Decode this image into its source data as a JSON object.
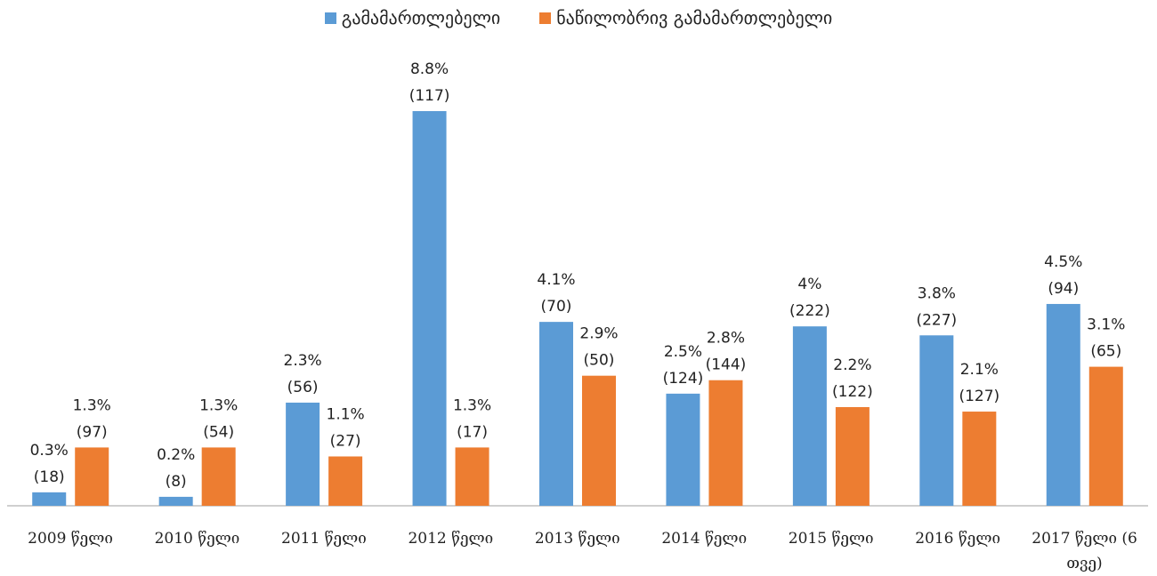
{
  "chart_data": {
    "type": "bar",
    "categories": [
      "2009 წელი",
      "2010 წელი",
      "2011 წელი",
      "2012 წელი",
      "2013 წელი",
      "2014 წელი",
      "2015 წელი",
      "2016 წელი",
      "2017 წელი (6 თვე)"
    ],
    "series": [
      {
        "name": "გამამართლებელი",
        "color": "#5b9bd5",
        "values": [
          0.3,
          0.2,
          2.3,
          8.8,
          4.1,
          2.5,
          4,
          3.8,
          4.5
        ],
        "value_labels": [
          "0.3%",
          "0.2%",
          "2.3%",
          "8.8%",
          "4.1%",
          "2.5%",
          "4%",
          "3.8%",
          "4.5%"
        ],
        "count_labels": [
          "(18)",
          "(8)",
          "(56)",
          "(117)",
          "(70)",
          "(124)",
          "(222)",
          "(227)",
          "(94)"
        ]
      },
      {
        "name": "ნაწილობრივ გამამართლებელი",
        "color": "#ed7d31",
        "values": [
          1.3,
          1.3,
          1.1,
          1.3,
          2.9,
          2.8,
          2.2,
          2.1,
          3.1
        ],
        "value_labels": [
          "1.3%",
          "1.3%",
          "1.1%",
          "1.3%",
          "2.9%",
          "2.8%",
          "2.2%",
          "2.1%",
          "3.1%"
        ],
        "count_labels": [
          "(97)",
          "(54)",
          "(27)",
          "(17)",
          "(50)",
          "(144)",
          "(122)",
          "(127)",
          "(65)"
        ]
      }
    ],
    "legend": "top"
  }
}
